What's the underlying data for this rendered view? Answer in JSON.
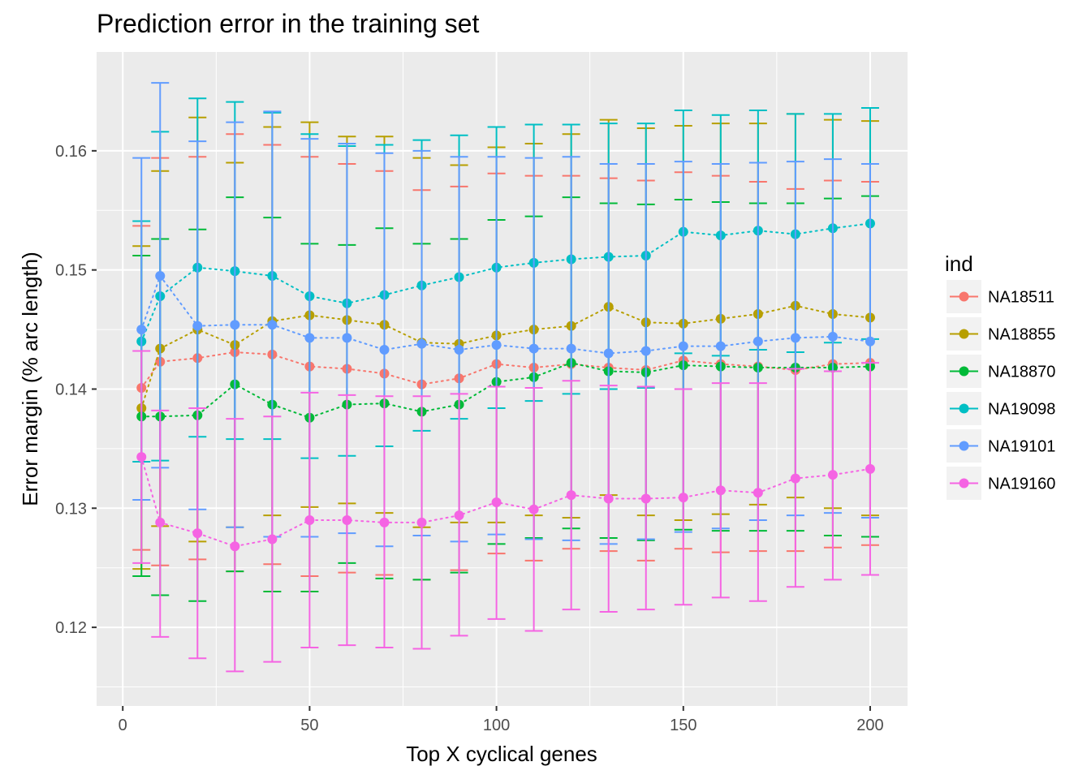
{
  "chart_data": {
    "type": "line",
    "title": "Prediction error in the training set",
    "xlabel": "Top X cyclical genes",
    "ylabel": "Error margin (% arc length)",
    "xlim": [
      -7,
      210
    ],
    "ylim": [
      0.1134,
      0.1683
    ],
    "x_ticks": [
      0,
      50,
      100,
      150,
      200
    ],
    "x_tick_labels": [
      "0",
      "50",
      "100",
      "150",
      "200"
    ],
    "y_ticks": [
      0.12,
      0.13,
      0.14,
      0.15,
      0.16
    ],
    "y_tick_labels": [
      "0.12",
      "0.13",
      "0.14",
      "0.15",
      "0.16"
    ],
    "legend_title": "ind",
    "legend_position": "right",
    "grid": true,
    "x": [
      5,
      10,
      20,
      30,
      40,
      50,
      60,
      70,
      80,
      90,
      100,
      110,
      120,
      130,
      140,
      150,
      160,
      170,
      180,
      190,
      200
    ],
    "series": [
      {
        "name": "NA18511",
        "color": "#F8766D",
        "values": [
          0.1401,
          0.1423,
          0.1426,
          0.1431,
          0.1429,
          0.1419,
          0.1417,
          0.1413,
          0.1404,
          0.1409,
          0.1421,
          0.1418,
          0.1421,
          0.1418,
          0.1416,
          0.1424,
          0.1421,
          0.1419,
          0.1416,
          0.1421,
          0.1422
        ],
        "upper": [
          0.1537,
          0.1594,
          0.1595,
          0.1614,
          0.1605,
          0.1595,
          0.1589,
          0.1583,
          0.1567,
          0.157,
          0.1581,
          0.1579,
          0.1579,
          0.1577,
          0.1575,
          0.1582,
          0.1579,
          0.1574,
          0.1568,
          0.1575,
          0.1574
        ],
        "lower": [
          0.1265,
          0.1252,
          0.1257,
          0.1247,
          0.1253,
          0.1243,
          0.1246,
          0.1244,
          0.124,
          0.1248,
          0.1262,
          0.1256,
          0.1266,
          0.1264,
          0.1256,
          0.1266,
          0.1263,
          0.1264,
          0.1264,
          0.1267,
          0.1269
        ]
      },
      {
        "name": "NA18855",
        "color": "#B79F00",
        "values": [
          0.1384,
          0.1434,
          0.145,
          0.1437,
          0.1457,
          0.1462,
          0.1458,
          0.1454,
          0.1439,
          0.1438,
          0.1445,
          0.145,
          0.1453,
          0.1469,
          0.1456,
          0.1455,
          0.1459,
          0.1463,
          0.147,
          0.1463,
          0.146
        ],
        "upper": [
          0.152,
          0.1583,
          0.1628,
          0.159,
          0.162,
          0.1624,
          0.1612,
          0.1612,
          0.1594,
          0.1588,
          0.1603,
          0.1606,
          0.1614,
          0.1626,
          0.1619,
          0.1621,
          0.1623,
          0.1623,
          0.1631,
          0.1626,
          0.1625
        ],
        "lower": [
          0.1249,
          0.1285,
          0.1272,
          0.1284,
          0.1294,
          0.1301,
          0.1304,
          0.1296,
          0.1284,
          0.1288,
          0.1288,
          0.1294,
          0.1292,
          0.1311,
          0.1294,
          0.129,
          0.1295,
          0.1303,
          0.1309,
          0.13,
          0.1294
        ]
      },
      {
        "name": "NA18870",
        "color": "#00BA38",
        "values": [
          0.1377,
          0.1377,
          0.1378,
          0.1404,
          0.1387,
          0.1376,
          0.1387,
          0.1388,
          0.1381,
          0.1387,
          0.1406,
          0.141,
          0.1422,
          0.1415,
          0.1414,
          0.142,
          0.1419,
          0.1418,
          0.1418,
          0.1418,
          0.1419
        ],
        "upper": [
          0.1512,
          0.1526,
          0.1534,
          0.1561,
          0.1544,
          0.1522,
          0.1521,
          0.1535,
          0.1522,
          0.1526,
          0.1542,
          0.1545,
          0.1561,
          0.1556,
          0.1555,
          0.1559,
          0.1557,
          0.1556,
          0.1556,
          0.156,
          0.1562
        ],
        "lower": [
          0.1243,
          0.1227,
          0.1222,
          0.1247,
          0.123,
          0.123,
          0.1254,
          0.1241,
          0.124,
          0.1246,
          0.127,
          0.1275,
          0.1283,
          0.1275,
          0.1273,
          0.1282,
          0.1281,
          0.1281,
          0.1281,
          0.1277,
          0.1276
        ]
      },
      {
        "name": "NA19098",
        "color": "#00BFC4",
        "values": [
          0.144,
          0.1478,
          0.1502,
          0.1499,
          0.1495,
          0.1478,
          0.1472,
          0.1479,
          0.1487,
          0.1494,
          0.1502,
          0.1506,
          0.1509,
          0.1511,
          0.1512,
          0.1532,
          0.1529,
          0.1533,
          0.153,
          0.1535,
          0.1539
        ],
        "upper": [
          0.1541,
          0.1616,
          0.1644,
          0.1641,
          0.1632,
          0.1614,
          0.1604,
          0.1605,
          0.1609,
          0.1613,
          0.162,
          0.1622,
          0.1622,
          0.1623,
          0.1623,
          0.1634,
          0.163,
          0.1634,
          0.1631,
          0.1631,
          0.1636
        ],
        "lower": [
          0.1339,
          0.134,
          0.136,
          0.1358,
          0.1358,
          0.1342,
          0.1344,
          0.1352,
          0.1365,
          0.1375,
          0.1384,
          0.139,
          0.1396,
          0.14,
          0.1401,
          0.143,
          0.1428,
          0.1433,
          0.1431,
          0.1439,
          0.1442
        ]
      },
      {
        "name": "NA19101",
        "color": "#619CFF",
        "values": [
          0.145,
          0.1495,
          0.1453,
          0.1454,
          0.1454,
          0.1443,
          0.1443,
          0.1433,
          0.1438,
          0.1433,
          0.1437,
          0.1434,
          0.1434,
          0.143,
          0.1432,
          0.1436,
          0.1436,
          0.144,
          0.1443,
          0.1444,
          0.144
        ],
        "upper": [
          0.1594,
          0.1657,
          0.1608,
          0.1624,
          0.1633,
          0.161,
          0.1606,
          0.1598,
          0.16,
          0.1595,
          0.1595,
          0.1594,
          0.1595,
          0.1589,
          0.1589,
          0.1591,
          0.1589,
          0.159,
          0.1591,
          0.1593,
          0.1589
        ],
        "lower": [
          0.1307,
          0.1334,
          0.1299,
          0.1284,
          0.1276,
          0.1276,
          0.1279,
          0.1268,
          0.1277,
          0.1272,
          0.1278,
          0.1274,
          0.1273,
          0.127,
          0.1274,
          0.128,
          0.1283,
          0.129,
          0.1294,
          0.1296,
          0.1292
        ]
      },
      {
        "name": "NA19160",
        "color": "#F564E3",
        "values": [
          0.1343,
          0.1288,
          0.1279,
          0.1268,
          0.1274,
          0.129,
          0.129,
          0.1288,
          0.1288,
          0.1294,
          0.1305,
          0.1299,
          0.1311,
          0.1308,
          0.1308,
          0.1309,
          0.1315,
          0.1313,
          0.1325,
          0.1328,
          0.1333
        ],
        "upper": [
          0.1432,
          0.1382,
          0.1384,
          0.1375,
          0.1377,
          0.1397,
          0.1395,
          0.1394,
          0.1394,
          0.1396,
          0.1402,
          0.1401,
          0.1407,
          0.1403,
          0.1402,
          0.14,
          0.1405,
          0.1405,
          0.1417,
          0.1415,
          0.1422
        ],
        "lower": [
          0.1254,
          0.1192,
          0.1174,
          0.1163,
          0.1171,
          0.1183,
          0.1185,
          0.1183,
          0.1182,
          0.1193,
          0.1207,
          0.1197,
          0.1215,
          0.1213,
          0.1215,
          0.1219,
          0.1225,
          0.1222,
          0.1234,
          0.124,
          0.1244
        ]
      }
    ]
  }
}
